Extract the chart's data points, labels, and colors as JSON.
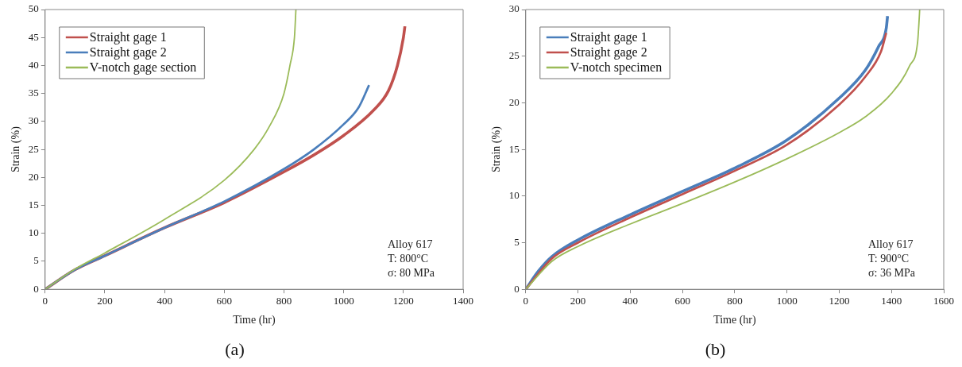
{
  "chart_data": [
    {
      "type": "line",
      "title": "(a)",
      "xlabel": "Time (hr)",
      "ylabel": "Strain (%)",
      "xlim": [
        0,
        1400
      ],
      "xticks": [
        0,
        200,
        400,
        600,
        800,
        1000,
        1200,
        1400
      ],
      "ylim": [
        0,
        50
      ],
      "yticks": [
        0,
        5,
        10,
        15,
        20,
        25,
        30,
        35,
        40,
        45,
        50
      ],
      "grid": false,
      "legend": "top left",
      "marker": "none",
      "line_style": "solid",
      "annotations": [
        "Alloy 617",
        "T: 800°C",
        "σ: 80 MPa"
      ],
      "series": [
        {
          "name": "Straight gage 1",
          "color": "#c0504d",
          "x": [
            0,
            100,
            200,
            400,
            600,
            800,
            900,
            1000,
            1100,
            1150,
            1180,
            1200,
            1205
          ],
          "values": [
            0,
            3.5,
            6,
            11,
            15.5,
            21,
            24,
            27.5,
            32,
            35.5,
            40,
            45,
            47
          ]
        },
        {
          "name": "Straight gage 2",
          "color": "#4a7ebb",
          "x": [
            0,
            100,
            200,
            400,
            600,
            800,
            900,
            1000,
            1050,
            1085
          ],
          "values": [
            0,
            3.5,
            6,
            11,
            15.7,
            21.5,
            25,
            29.5,
            32.5,
            36.5
          ]
        },
        {
          "name": "V-notch gage section",
          "color": "#9bbb59",
          "x": [
            0,
            100,
            200,
            400,
            600,
            700,
            750,
            800,
            820,
            835,
            840
          ],
          "values": [
            0,
            3.6,
            6.5,
            12.5,
            19.5,
            25,
            29,
            35,
            40,
            45,
            50
          ]
        }
      ]
    },
    {
      "type": "line",
      "title": "(b)",
      "xlabel": "Time (hr)",
      "ylabel": "Strain (%)",
      "xlim": [
        0,
        1600
      ],
      "xticks": [
        0,
        200,
        400,
        600,
        800,
        1000,
        1200,
        1400,
        1600
      ],
      "ylim": [
        0,
        30
      ],
      "yticks": [
        0,
        5,
        10,
        15,
        20,
        25,
        30
      ],
      "grid": false,
      "legend": "top left",
      "marker": "none",
      "line_style": "solid",
      "annotations": [
        "Alloy 617",
        "T: 900°C",
        "σ: 36 MPa"
      ],
      "series": [
        {
          "name": "Straight gage 1",
          "color": "#4a7ebb",
          "x": [
            0,
            50,
            100,
            200,
            400,
            600,
            800,
            1000,
            1200,
            1300,
            1350,
            1380,
            1385
          ],
          "values": [
            0,
            2,
            3.5,
            5.3,
            8,
            10.5,
            13,
            16,
            20.5,
            23.5,
            26,
            28,
            29.3
          ]
        },
        {
          "name": "Straight gage 2",
          "color": "#c0504d",
          "x": [
            0,
            100,
            200,
            400,
            600,
            800,
            1000,
            1200,
            1300,
            1360,
            1380
          ],
          "values": [
            0,
            3.3,
            5,
            7.7,
            10.2,
            12.7,
            15.5,
            19.8,
            22.8,
            25.5,
            27.5
          ]
        },
        {
          "name": "V-notch specimen",
          "color": "#9bbb59",
          "x": [
            0,
            100,
            200,
            400,
            600,
            800,
            1000,
            1200,
            1300,
            1400,
            1470,
            1500,
            1505,
            1508
          ],
          "values": [
            0,
            3,
            4.6,
            7,
            9.2,
            11.5,
            14,
            16.8,
            18.5,
            21,
            24,
            26.5,
            28.5,
            30
          ]
        }
      ]
    }
  ]
}
